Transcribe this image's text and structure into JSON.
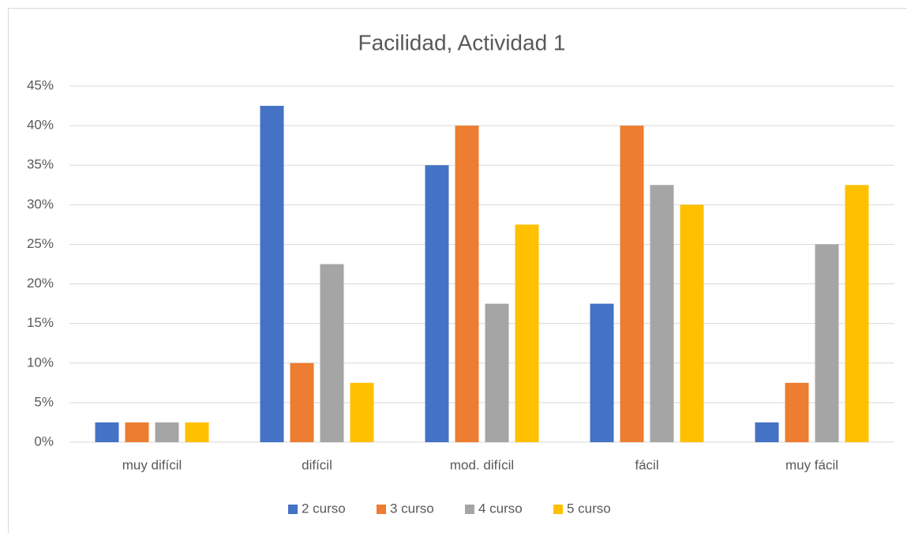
{
  "chart_data": {
    "type": "bar",
    "title": "Facilidad, Actividad 1",
    "categories": [
      "muy difícil",
      "difícil",
      "mod. difícil",
      "fácil",
      "muy fácil"
    ],
    "series": [
      {
        "name": "2 curso",
        "color": "#4472c4",
        "values": [
          2.5,
          42.5,
          35,
          17.5,
          2.5
        ]
      },
      {
        "name": "3 curso",
        "color": "#ed7d31",
        "values": [
          2.5,
          10,
          40,
          40,
          7.5
        ]
      },
      {
        "name": "4 curso",
        "color": "#a5a5a5",
        "values": [
          2.5,
          22.5,
          17.5,
          32.5,
          25
        ]
      },
      {
        "name": "5 curso",
        "color": "#ffc000",
        "values": [
          2.5,
          7.5,
          27.5,
          30,
          32.5
        ]
      }
    ],
    "ylim": [
      0,
      45
    ],
    "yticks": [
      {
        "value": 0,
        "label": "0%"
      },
      {
        "value": 5,
        "label": "5%"
      },
      {
        "value": 10,
        "label": "10%"
      },
      {
        "value": 15,
        "label": "15%"
      },
      {
        "value": 20,
        "label": "20%"
      },
      {
        "value": 25,
        "label": "25%"
      },
      {
        "value": 30,
        "label": "30%"
      },
      {
        "value": 35,
        "label": "35%"
      },
      {
        "value": 40,
        "label": "40%"
      },
      {
        "value": 45,
        "label": "45%"
      }
    ],
    "grid": true,
    "legend": "bottom"
  }
}
